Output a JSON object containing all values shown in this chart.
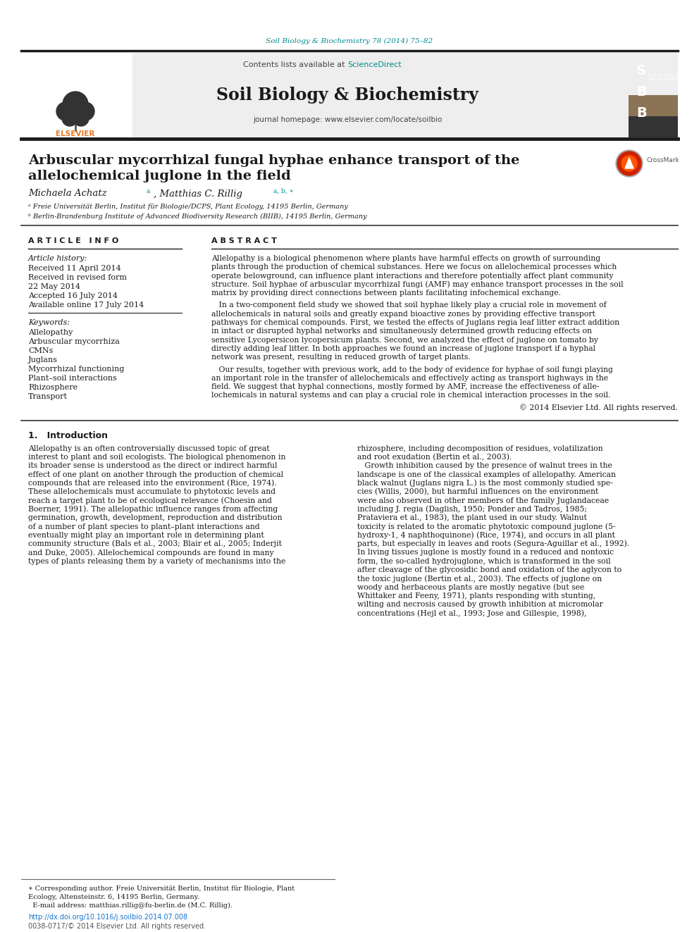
{
  "journal_ref": "Soil Biology & Biochemistry 78 (2014) 75–82",
  "journal_name": "Soil Biology & Biochemistry",
  "contents_text": "Contents lists available at ",
  "sciencedirect": "ScienceDirect",
  "journal_homepage": "journal homepage: www.elsevier.com/locate/soilbio",
  "title_line1": "Arbuscular mycorrhizal fungal hyphae enhance transport of the",
  "title_line2": "allelochemical juglone in the field",
  "article_info_header": "A R T I C L E   I N F O",
  "abstract_header": "A B S T R A C T",
  "keywords": [
    "Allelopathy",
    "Arbuscular mycorrhiza",
    "CMNs",
    "Juglans",
    "Mycorrhizal functioning",
    "Plant–soil interactions",
    "Rhizosphere",
    "Transport"
  ],
  "copyright": "© 2014 Elsevier Ltd. All rights reserved.",
  "doi": "http://dx.doi.org/10.1016/j.soilbio.2014.07.008",
  "issn": "0038-0717/© 2014 Elsevier Ltd. All rights reserved.",
  "bg_color": "#ffffff",
  "teal_color": "#008B8B",
  "orange_color": "#E87722",
  "dark_color": "#1a1a1a",
  "link_color": "#1874CD"
}
